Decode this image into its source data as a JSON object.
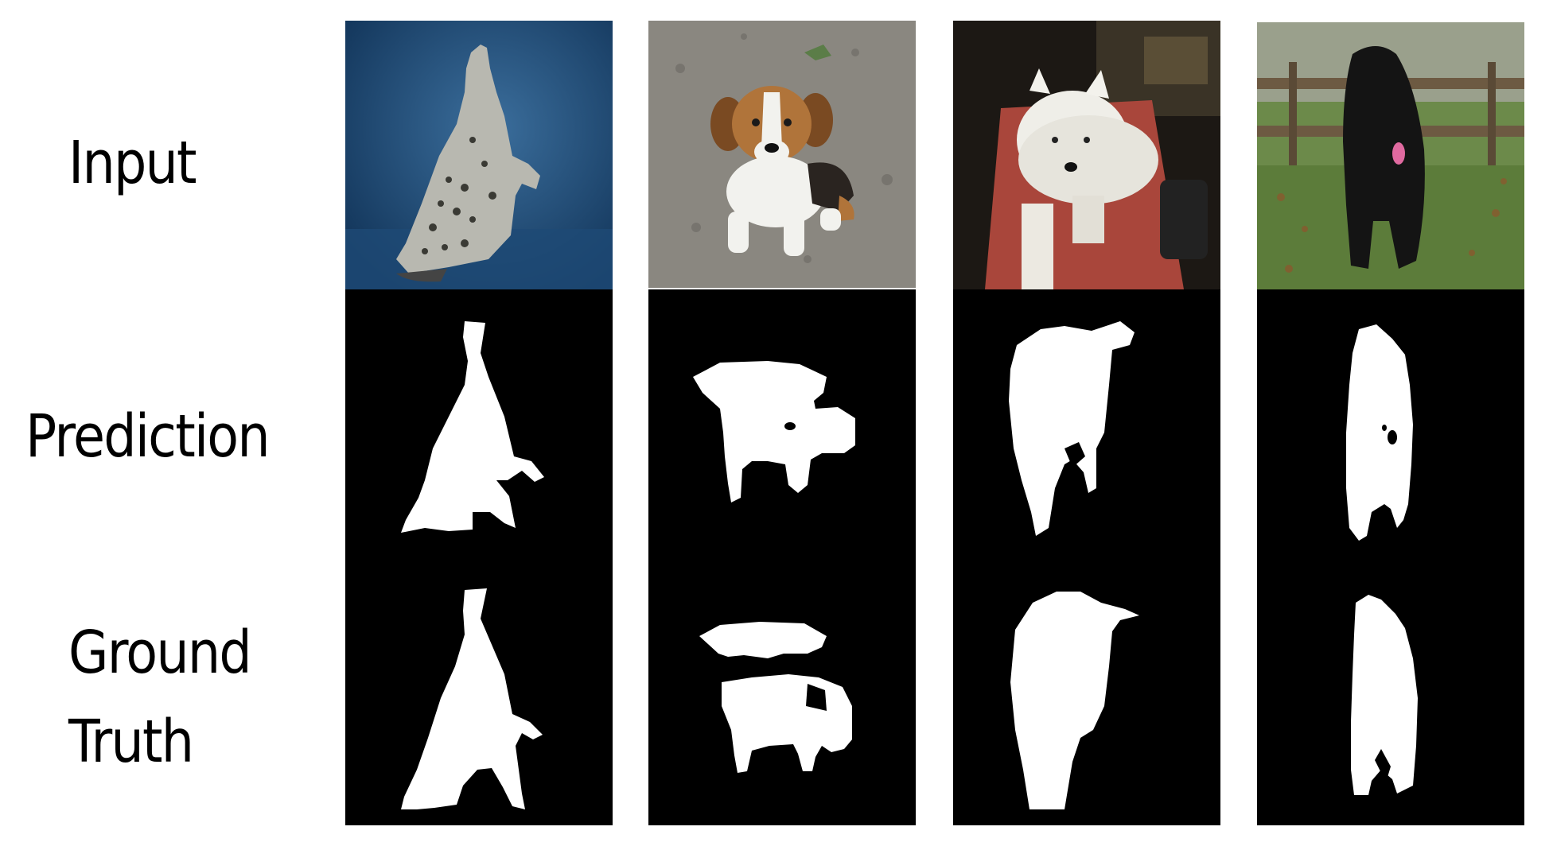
{
  "labels": {
    "input": "Input",
    "prediction": "Prediction",
    "ground_truth_line1": "Ground",
    "ground_truth_line2": "Truth"
  },
  "columns": [
    {
      "subject": "cat",
      "input_desc": "spotted cat sitting on blue backdrop"
    },
    {
      "subject": "beagle puppy",
      "input_desc": "beagle puppy on pavement"
    },
    {
      "subject": "white dog",
      "input_desc": "white fluffy dog on red rug"
    },
    {
      "subject": "black dog",
      "input_desc": "black newfoundland on grass"
    }
  ],
  "colors": {
    "background": "#ffffff",
    "mask_bg": "#000000",
    "mask_fg": "#ffffff"
  }
}
